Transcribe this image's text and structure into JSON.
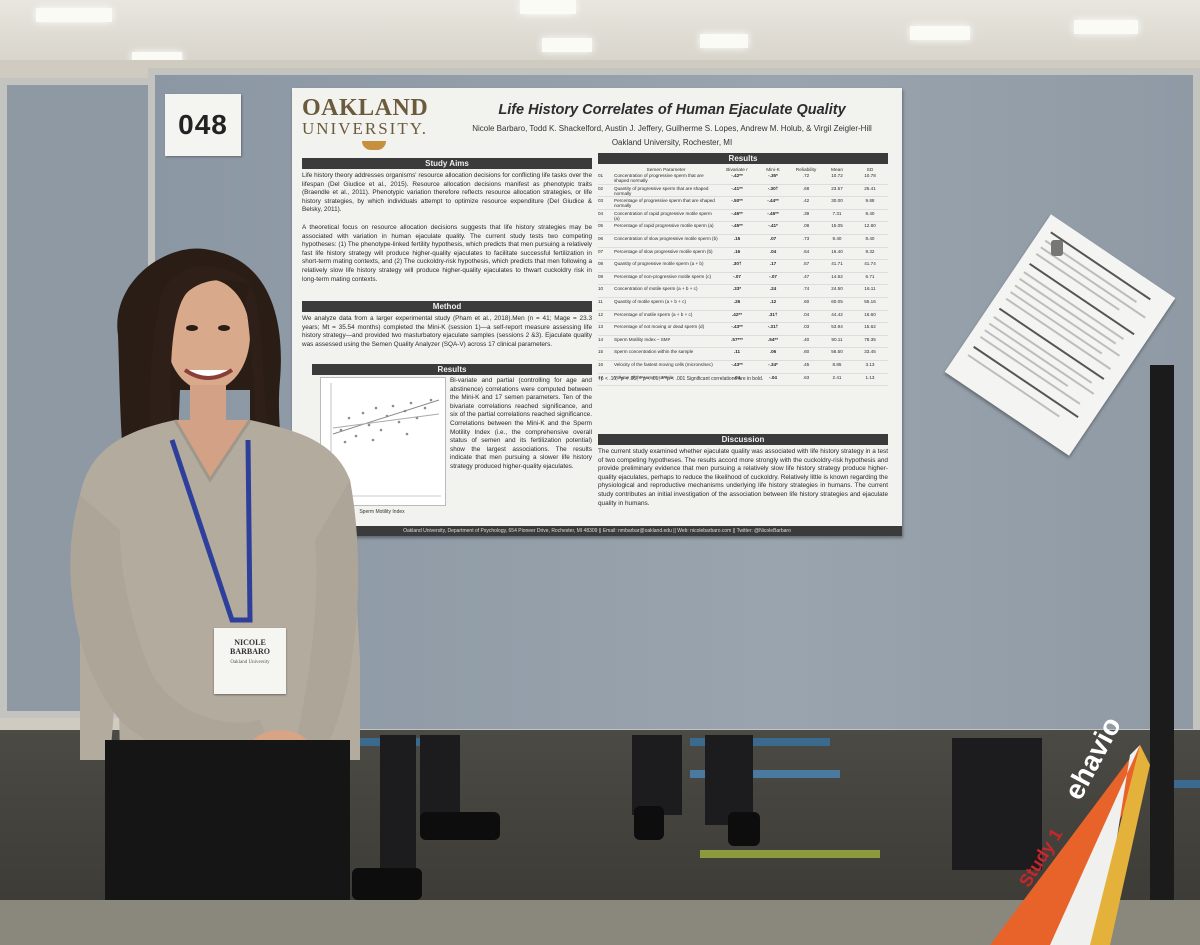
{
  "poster_number": "048",
  "poster": {
    "logo": {
      "line1": "OAKLAND",
      "line2": "UNIVERSITY."
    },
    "title": "Life History Correlates of Human Ejaculate Quality",
    "authors": "Nicole Barbaro, Todd K. Shackelford, Austin J. Jeffery, Guilherme S. Lopes, Andrew M. Holub, & Virgil Zeigler-Hill",
    "affiliation": "Oakland University, Rochester, MI",
    "sections": {
      "study_aims": "Study Aims",
      "method": "Method",
      "results_left": "Results",
      "results_right": "Results",
      "discussion": "Discussion"
    },
    "study_aims_p1": "Life history theory addresses organisms' resource allocation decisions for conflicting life tasks over the lifespan (Del Giudice et al., 2015). Resource allocation decisions manifest as phenotypic traits (Braendle et al., 2011). Phenotypic variation therefore reflects resource allocation strategies, or life history strategies, by which individuals attempt to optimize resource expenditure (Del Giudice & Belsky, 2011).",
    "study_aims_p2": "A theoretical focus on resource allocation decisions suggests that life history strategies may be associated with variation in human ejaculate quality. The current study tests two competing hypotheses: (1) The phenotype-linked fertility hypothesis, which predicts that men pursuing a relatively fast life history strategy will produce higher-quality ejaculates to facilitate successful fertilization in short-term mating contexts, and (2) The cuckoldry-risk hypothesis, which predicts that men following a relatively slow life history strategy will produce higher-quality ejaculates to thwart cuckoldry risk in long-term mating contexts.",
    "method_text": "We analyze data from a larger experimental study (Pham et al., 2018).Men (n = 41; Mage = 23.3 years; Mt = 35.54 months) completed the Mini-K (session 1)—a self-report measure assessing life history strategy—and provided two masturbatory ejaculate samples (sessions 2 &3). Ejaculate quality was assessed using the Semen Quality Analyzer (SQA-V) across 17 clinical parameters.",
    "results_text": "Bi-variate and partial (controlling for age and abstinence) correlations were computed between the Mini-K and 17 semen parameters. Ten of the bivariate correlations reached significance, and six of the partial correlations reached significance. Correlations between the Mini-K and the Sperm Motility Index (i.e., the comprehensive overall status of semen and its fertilization potential) show the largest associations. The results indicate that men pursuing a slower life history strategy produced higher-quality ejaculates.",
    "plot_xlabel": "Sperm Motility Index",
    "table_head": {
      "param": "Semen Parameter",
      "biv": "Bivariate r",
      "minik": "Mini-K",
      "partial": "Partial r (controls age & abstinence)",
      "rel": "Reliability",
      "mean": "Mean",
      "sd": "SD",
      "rel_v": ".80",
      "mean_v": "3.20",
      "sd_v": "0.73"
    },
    "table_rows": [
      [
        "01",
        "Concentration of progressive sperm that are shaped normally",
        "-.42**",
        "-.35*",
        ".72",
        "10.72",
        "10.78"
      ],
      [
        "02",
        "Quantity of progressive sperm that are shaped normally",
        "-.41**",
        "-.30†",
        ".68",
        "23.57",
        "25.41"
      ],
      [
        "03",
        "Percentage of progressive sperm that are shaped normally",
        "-.50**",
        "-.44**",
        ".42",
        "30.00",
        "9.88"
      ],
      [
        "04",
        "Concentration of rapid progressive motile sperm (a)",
        "-.46**",
        "-.46**",
        ".39",
        "7.31",
        "8.40"
      ],
      [
        "05",
        "Percentage of rapid progressive motile sperm (a)",
        "-.45**",
        "-.41*",
        ".08",
        "15.05",
        "12.80"
      ],
      [
        "06",
        "Concentration of slow progressive motile sperm (b)",
        ".15",
        ".07",
        ".73",
        "9.40",
        "8.40"
      ],
      [
        "07",
        "Percentage of slow progressive motile sperm (b)",
        ".16",
        ".04",
        ".64",
        "16.40",
        "9.32"
      ],
      [
        "08",
        "Quantity of progressive motile sperm (a + b)",
        ".30†",
        ".17",
        ".57",
        "41.71",
        "41.74"
      ],
      [
        "09",
        "Percentage of non-progressive motile sperm (c)",
        "-.07",
        "-.07",
        ".47",
        "14.62",
        "6.71"
      ],
      [
        "10",
        "Concentration of motile sperm (a + b + c)",
        ".33*",
        ".24",
        ".74",
        "24.50",
        "16.11"
      ],
      [
        "11",
        "Quantity of motile sperm (a + b + c)",
        ".26",
        ".12",
        ".60",
        "60.05",
        "55.16"
      ],
      [
        "12",
        "Percentage of motile sperm (a + b + c)",
        ".42**",
        ".31†",
        ".04",
        "44.42",
        "16.60"
      ],
      [
        "13",
        "Percentage of not moving or dead sperm (d)",
        "-.43**",
        "-.31†",
        ".03",
        "53.94",
        "15.62"
      ],
      [
        "14",
        "Sperm Motility Index – SMI¹",
        ".57***",
        ".54**",
        ".40",
        "90.11",
        "78.35"
      ],
      [
        "15",
        "Sperm concentration within the sample",
        ".11",
        ".06",
        ".60",
        "56.50",
        "33.45"
      ],
      [
        "16",
        "Velocity of the fastest moving cells (microns/sec)",
        "-.43**",
        "-.34*",
        ".45",
        "8.85",
        "3.13"
      ],
      [
        "17",
        "Volume of the semen sample",
        ".04",
        "-.04",
        ".63",
        "2.41",
        "1.13"
      ]
    ],
    "table_note": "†p < .10, *p < .05, **p < .01, ***p < .001  Significant correlations are in bold.",
    "discussion_text": "The current study examined whether ejaculate quality was associated with life history strategy in a test of two competing hypotheses. The results accord more strongly with the cuckoldry-risk hypothesis and provide preliminary evidence that men pursuing a relatively slow life history strategy produce higher-quality ejaculates, perhaps to reduce the likelihood of cuckoldry. Relatively little is known regarding the physiological and reproductive mechanisms underlying life history strategies in humans. The current study contributes an initial investigation of the association between life history strategies and ejaculate quality in humans.",
    "footer": "Oakland University, Department of Psychology, 654 Pioneer Drive, Rochester, MI 48309  ||  Email: nmbarbar@oakland.edu  ||  Web: nicolebarbaro.com  ||  Twitter: @NicoleBarbaro"
  },
  "badge": {
    "name": "NICOLE BARBARO",
    "org": "Oakland University"
  },
  "banner": {
    "text": "ehavio",
    "study": "Study 1"
  },
  "colors": {
    "board": "#8e99a4",
    "poster": "#f2f2ef",
    "header_bar": "#3b3b3b",
    "logo": "#6b5a3c",
    "banner": "#e8632a"
  }
}
